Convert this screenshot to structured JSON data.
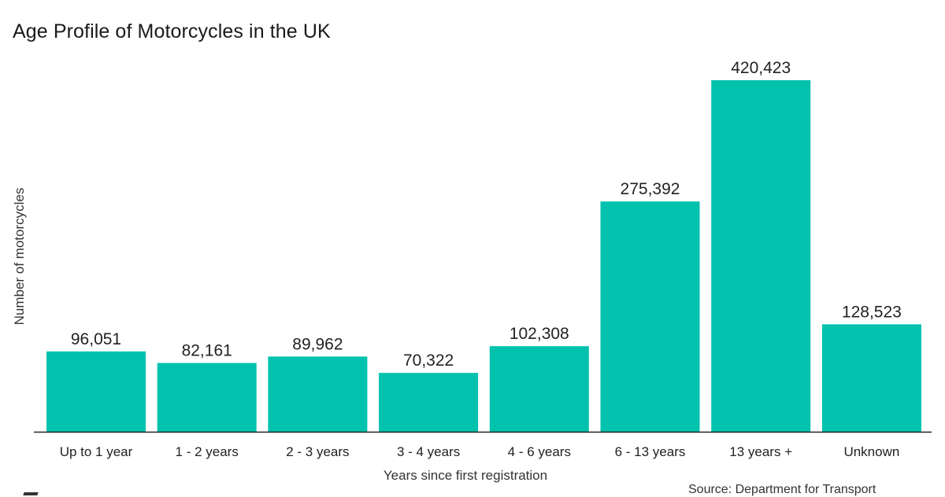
{
  "chart_data": {
    "type": "bar",
    "title": "Age Profile of Motorcycles in the UK",
    "xlabel": "Years since first registration",
    "ylabel": "Number of motorcycles",
    "categories": [
      "Up to 1 year",
      "1 - 2 years",
      "2 - 3 years",
      "3 - 4 years",
      "4 - 6 years",
      "6 - 13 years",
      "13 years +",
      "Unknown"
    ],
    "values": [
      96051,
      82161,
      89962,
      70322,
      102308,
      275392,
      420423,
      128523
    ],
    "value_labels": [
      "96,051",
      "82,161",
      "89,962",
      "70,322",
      "102,308",
      "275,392",
      "420,423",
      "128,523"
    ],
    "ylim": [
      0,
      420423
    ],
    "grid": false,
    "bar_color": "#00c2ad",
    "source": "Source: Department for Transport"
  }
}
